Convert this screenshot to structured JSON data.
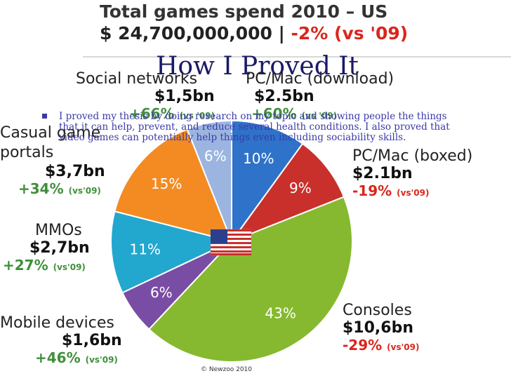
{
  "header": {
    "line1": "Total games spend 2010 – US",
    "total": "$ 24,700,000,000 |",
    "change": "-2% (vs '09)"
  },
  "slide": {
    "title": "How I Proved It",
    "bullet": "I proved my thesis by doing research on my topic and showing people the things that it can help, prevent, and reduce several health conditions. I also proved that video games can potentially help things even including sociability skills."
  },
  "copyright": "© Newzoo 2010",
  "colors": {
    "pc_download": "#2f72c9",
    "pc_boxed": "#c9302c",
    "consoles": "#86b92f",
    "mobile": "#7a4da4",
    "mmos": "#22a7cf",
    "casual": "#f38b22",
    "social": "#9bb5e0"
  },
  "chart_data": {
    "type": "pie",
    "title": "Total games spend 2010 – US",
    "slices": [
      {
        "name": "PC/Mac (download)",
        "amount": "$2.5bn",
        "change": "+60%",
        "vs": "(vs '09)",
        "percent": 10,
        "percent_label": "10%"
      },
      {
        "name": "PC/Mac (boxed)",
        "amount": "$2.1bn",
        "change": "-19%",
        "vs": "(vs'09)",
        "percent": 9,
        "percent_label": "9%"
      },
      {
        "name": "Consoles",
        "amount": "$10,6bn",
        "change": "-29%",
        "vs": "(vs'09)",
        "percent": 43,
        "percent_label": "43%"
      },
      {
        "name": "Mobile devices",
        "amount": "$1,6bn",
        "change": "+46%",
        "vs": "(vs'09)",
        "percent": 6,
        "percent_label": "6%"
      },
      {
        "name": "MMOs",
        "amount": "$2,7bn",
        "change": "+27%",
        "vs": "(vs'09)",
        "percent": 11,
        "percent_label": "11%"
      },
      {
        "name": "Casual game portals",
        "amount": "$3,7bn",
        "change": "+34%",
        "vs": "(vs'09)",
        "percent": 15,
        "percent_label": "15%"
      },
      {
        "name": "Social networks",
        "amount": "$1,5bn",
        "change": "+66%",
        "vs": "(vs '09)",
        "percent": 6,
        "percent_label": "6%"
      }
    ]
  }
}
